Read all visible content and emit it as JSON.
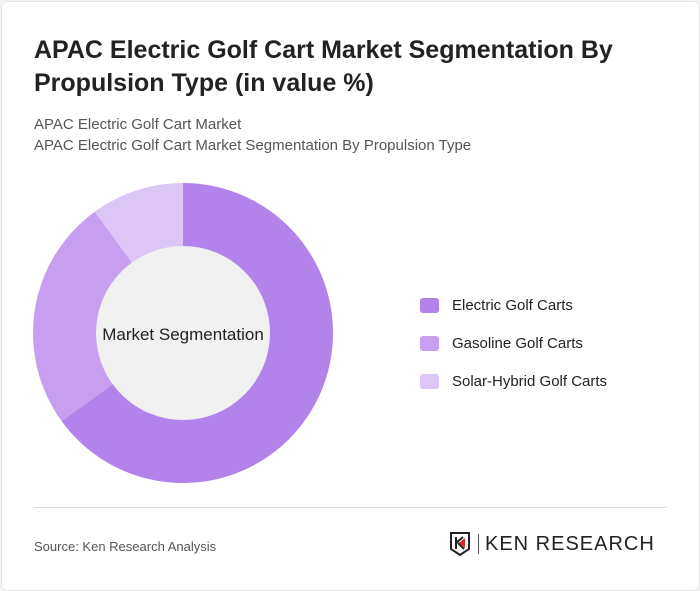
{
  "title": "APAC Electric Golf Cart Market Segmentation By Propulsion Type (in value %)",
  "subtitle1": "APAC Electric Golf Cart Market",
  "subtitle2": "APAC Electric Golf Cart Market Segmentation By Propulsion Type",
  "chart_data": {
    "type": "pie",
    "donut": true,
    "center_label": "Market Segmentation",
    "categories": [
      "Electric Golf Carts",
      "Gasoline Golf Carts",
      "Solar-Hybrid Golf Carts"
    ],
    "values": [
      65,
      25,
      10
    ],
    "colors": [
      "#b383ec",
      "#c79ff0",
      "#dcc5f7"
    ],
    "legend": "right"
  },
  "source": "Source: Ken Research Analysis",
  "logo_text": "KEN RESEARCH"
}
